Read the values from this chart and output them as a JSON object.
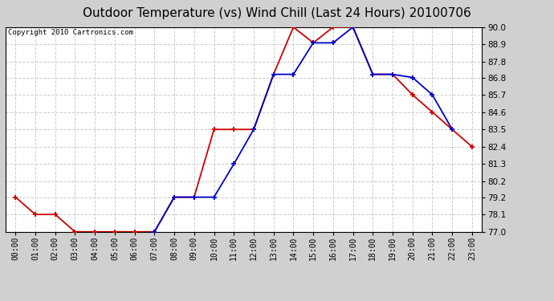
{
  "title": "Outdoor Temperature (vs) Wind Chill (Last 24 Hours) 20100706",
  "copyright": "Copyright 2010 Cartronics.com",
  "hours": [
    "00:00",
    "01:00",
    "02:00",
    "03:00",
    "04:00",
    "05:00",
    "06:00",
    "07:00",
    "08:00",
    "09:00",
    "10:00",
    "11:00",
    "12:00",
    "13:00",
    "14:00",
    "15:00",
    "16:00",
    "17:00",
    "18:00",
    "19:00",
    "20:00",
    "21:00",
    "22:00",
    "23:00"
  ],
  "temp": [
    79.2,
    78.1,
    78.1,
    77.0,
    77.0,
    77.0,
    77.0,
    77.0,
    79.2,
    79.2,
    83.5,
    83.5,
    83.5,
    87.0,
    90.0,
    89.0,
    90.0,
    90.0,
    87.0,
    87.0,
    85.7,
    84.6,
    83.5,
    82.4
  ],
  "windchill": [
    null,
    null,
    null,
    null,
    null,
    null,
    null,
    77.0,
    79.2,
    79.2,
    79.2,
    81.3,
    83.5,
    87.0,
    87.0,
    89.0,
    89.0,
    90.0,
    87.0,
    87.0,
    86.8,
    85.7,
    83.5,
    null
  ],
  "temp_color": "#cc0000",
  "windchill_color": "#0000cc",
  "ylim_min": 77.0,
  "ylim_max": 90.0,
  "yticks": [
    77.0,
    78.1,
    79.2,
    80.2,
    81.3,
    82.4,
    83.5,
    84.6,
    85.7,
    86.8,
    87.8,
    88.9,
    90.0
  ],
  "plot_bg_color": "#ffffff",
  "fig_bg_color": "#d0d0d0",
  "grid_color": "#cccccc",
  "title_fontsize": 11,
  "copyright_fontsize": 6.5,
  "tick_fontsize": 7,
  "ytick_fontsize": 7.5
}
